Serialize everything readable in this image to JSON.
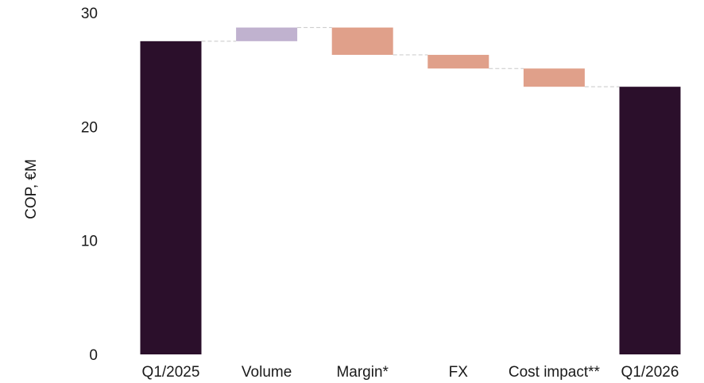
{
  "chart_data": {
    "type": "waterfall",
    "title": "",
    "ylabel": "COP, €M",
    "xlabel": "",
    "ylim": [
      0,
      30
    ],
    "yticks": [
      0,
      10,
      20,
      30
    ],
    "grid": false,
    "categories": [
      "Q1/2025",
      "Volume",
      "Margin*",
      "FX",
      "Cost impact**",
      "Q1/2026"
    ],
    "steps": [
      {
        "label": "Q1/2025",
        "kind": "total",
        "value": 27.5
      },
      {
        "label": "Volume",
        "kind": "delta",
        "value": 1.2
      },
      {
        "label": "Margin*",
        "kind": "delta",
        "value": -2.4
      },
      {
        "label": "FX",
        "kind": "delta",
        "value": -1.2
      },
      {
        "label": "Cost impact**",
        "kind": "delta",
        "value": -1.6
      },
      {
        "label": "Q1/2026",
        "kind": "total",
        "value": 23.5
      }
    ],
    "colors": {
      "total": "#2b0f2b",
      "increase": "#c0b2cf",
      "decrease": "#e0a08a",
      "connector": "#c8c8c8"
    }
  }
}
